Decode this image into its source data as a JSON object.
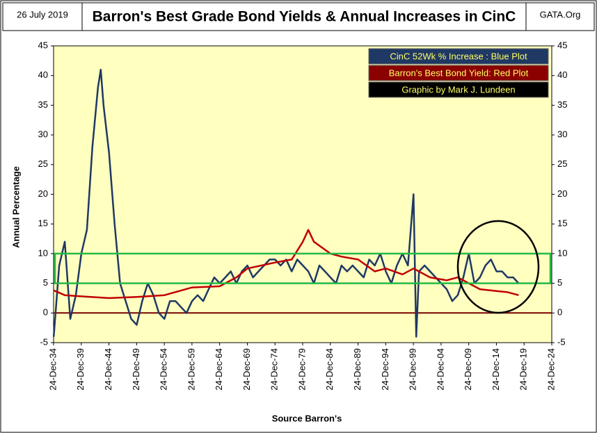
{
  "chart_data": {
    "type": "line",
    "date": "26 July 2019",
    "source_site": "GATA.Org",
    "title": "Barron's Best Grade Bond Yields & Annual Increases in CinC",
    "y_label": "Annual  Percentage",
    "x_label": "Source Barron's",
    "legend_lines": [
      "CinC 52Wk % Increase : Blue Plot",
      "Barron's Best Bond Yield: Red Plot",
      "Graphic by Mark J. Lundeen"
    ],
    "legend_colors": [
      "#1f3864",
      "#8b0000",
      "#000000"
    ],
    "band": [
      5,
      10
    ],
    "band_color": "#22bb44",
    "zero_line_color": "#7b0000",
    "xlim": [
      1934.98,
      2024.98
    ],
    "xticks": [
      {
        "value": 1934.98,
        "label": "24-Dec-34"
      },
      {
        "value": 1939.98,
        "label": "24-Dec-39"
      },
      {
        "value": 1944.98,
        "label": "24-Dec-44"
      },
      {
        "value": 1949.98,
        "label": "24-Dec-49"
      },
      {
        "value": 1954.98,
        "label": "24-Dec-54"
      },
      {
        "value": 1959.98,
        "label": "24-Dec-59"
      },
      {
        "value": 1964.98,
        "label": "24-Dec-64"
      },
      {
        "value": 1969.98,
        "label": "24-Dec-69"
      },
      {
        "value": 1974.98,
        "label": "24-Dec-74"
      },
      {
        "value": 1979.98,
        "label": "24-Dec-79"
      },
      {
        "value": 1984.98,
        "label": "24-Dec-84"
      },
      {
        "value": 1989.98,
        "label": "24-Dec-89"
      },
      {
        "value": 1994.98,
        "label": "24-Dec-94"
      },
      {
        "value": 1999.98,
        "label": "24-Dec-99"
      },
      {
        "value": 2004.98,
        "label": "24-Dec-04"
      },
      {
        "value": 2009.98,
        "label": "24-Dec-09"
      },
      {
        "value": 2014.98,
        "label": "24-Dec-14"
      },
      {
        "value": 2019.98,
        "label": "24-Dec-19"
      },
      {
        "value": 2024.98,
        "label": "24-Dec-24"
      }
    ],
    "ylim": [
      -5,
      45
    ],
    "yticks": [
      -5,
      0,
      5,
      10,
      15,
      20,
      25,
      30,
      35,
      40,
      45
    ],
    "series": [
      {
        "name": "CinC 52Wk % Increase",
        "color": "#1f3864",
        "x": [
          1935,
          1936,
          1937,
          1938,
          1939,
          1940,
          1941,
          1942,
          1943,
          1943.5,
          1944,
          1945,
          1946,
          1947,
          1948,
          1949,
          1950,
          1951,
          1952,
          1953,
          1954,
          1955,
          1956,
          1957,
          1958,
          1959,
          1960,
          1961,
          1962,
          1963,
          1964,
          1965,
          1966,
          1967,
          1968,
          1969,
          1970,
          1971,
          1972,
          1973,
          1974,
          1975,
          1976,
          1977,
          1978,
          1979,
          1980,
          1981,
          1982,
          1983,
          1984,
          1985,
          1986,
          1987,
          1988,
          1989,
          1990,
          1991,
          1992,
          1993,
          1994,
          1995,
          1996,
          1997,
          1998,
          1999,
          2000,
          2000.5,
          2001,
          2002,
          2003,
          2004,
          2005,
          2006,
          2007,
          2008,
          2009,
          2010,
          2011,
          2012,
          2013,
          2014,
          2015,
          2016,
          2017,
          2018,
          2019
        ],
        "values": [
          -4,
          8,
          12,
          -1,
          3,
          10,
          14,
          28,
          38,
          41,
          35,
          27,
          15,
          5,
          2,
          -1,
          -2,
          2,
          5,
          3,
          0,
          -1,
          2,
          2,
          1,
          0,
          2,
          3,
          2,
          4,
          6,
          5,
          6,
          7,
          5,
          7,
          8,
          6,
          7,
          8,
          9,
          9,
          8,
          9,
          7,
          9,
          8,
          7,
          5,
          8,
          7,
          6,
          5,
          8,
          7,
          8,
          7,
          6,
          9,
          8,
          10,
          7,
          5,
          8,
          10,
          8,
          20,
          -4,
          7,
          8,
          7,
          6,
          5,
          4,
          2,
          3,
          6,
          10,
          5,
          6,
          8,
          9,
          7,
          7,
          6,
          6,
          5
        ]
      },
      {
        "name": "Barron's Best Bond Yield",
        "color": "#c00000",
        "x": [
          1935,
          1937,
          1940,
          1945,
          1950,
          1955,
          1960,
          1965,
          1968,
          1970,
          1975,
          1978,
          1980,
          1981,
          1982,
          1985,
          1987,
          1990,
          1993,
          1995,
          1998,
          2000,
          2003,
          2006,
          2008,
          2010,
          2012,
          2015,
          2017,
          2019
        ],
        "values": [
          3.8,
          3,
          2.8,
          2.5,
          2.7,
          3,
          4.3,
          4.5,
          6,
          7.5,
          8.5,
          9,
          12,
          14,
          12,
          10,
          9.5,
          9,
          7,
          7.5,
          6.5,
          7.5,
          6,
          5.5,
          6,
          5,
          4,
          3.7,
          3.5,
          3
        ]
      }
    ]
  }
}
